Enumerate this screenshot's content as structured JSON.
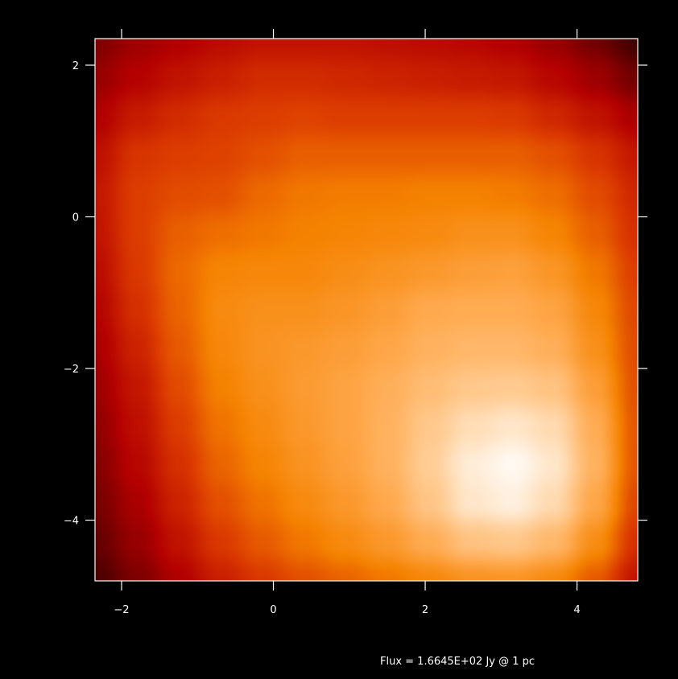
{
  "chart_data": {
    "type": "heatmap",
    "title": "",
    "xlabel": "",
    "ylabel": "",
    "xlim": [
      -2.35,
      4.8
    ],
    "ylim": [
      -4.8,
      2.35
    ],
    "x_ticks": [
      -2,
      0,
      2,
      4
    ],
    "y_ticks": [
      2,
      0,
      -2,
      -4
    ],
    "x_tick_labels": [
      "−2",
      "0",
      "2",
      "4"
    ],
    "y_tick_labels": [
      "2",
      "0",
      "−2",
      "−4"
    ],
    "grid": false,
    "colormap": "heat (black-red-orange-white)",
    "colors": {
      "background": "#000000",
      "axes": "#ffffff",
      "colormap_stops": [
        "#000000",
        "#5a0000",
        "#b40000",
        "#dc3c00",
        "#f58200",
        "#ffaa50",
        "#ffd2a0",
        "#ffffff"
      ]
    },
    "intensity_grid_note": "values on a normalized 0-1 scale; rows from top (y=2.35) to bottom (y=-4.8), columns from left (x=-2.35) to right (x=4.8)",
    "intensity_grid": [
      [
        0.2,
        0.25,
        0.28,
        0.31,
        0.33,
        0.33,
        0.33,
        0.32,
        0.31,
        0.3,
        0.28,
        0.24,
        0.18,
        0.1
      ],
      [
        0.24,
        0.29,
        0.33,
        0.36,
        0.39,
        0.39,
        0.38,
        0.37,
        0.36,
        0.35,
        0.34,
        0.3,
        0.25,
        0.18
      ],
      [
        0.28,
        0.35,
        0.39,
        0.42,
        0.43,
        0.44,
        0.43,
        0.43,
        0.43,
        0.43,
        0.42,
        0.38,
        0.33,
        0.27
      ],
      [
        0.32,
        0.41,
        0.43,
        0.44,
        0.47,
        0.5,
        0.5,
        0.5,
        0.5,
        0.5,
        0.5,
        0.47,
        0.41,
        0.34
      ],
      [
        0.34,
        0.43,
        0.46,
        0.47,
        0.52,
        0.55,
        0.56,
        0.56,
        0.57,
        0.57,
        0.56,
        0.53,
        0.46,
        0.38
      ],
      [
        0.33,
        0.43,
        0.5,
        0.53,
        0.55,
        0.57,
        0.58,
        0.59,
        0.6,
        0.62,
        0.62,
        0.58,
        0.5,
        0.4
      ],
      [
        0.31,
        0.42,
        0.52,
        0.58,
        0.59,
        0.59,
        0.61,
        0.63,
        0.65,
        0.67,
        0.68,
        0.64,
        0.55,
        0.43
      ],
      [
        0.29,
        0.4,
        0.51,
        0.6,
        0.62,
        0.62,
        0.64,
        0.67,
        0.71,
        0.72,
        0.72,
        0.69,
        0.59,
        0.45
      ],
      [
        0.27,
        0.37,
        0.49,
        0.59,
        0.63,
        0.65,
        0.67,
        0.7,
        0.74,
        0.76,
        0.76,
        0.73,
        0.62,
        0.46
      ],
      [
        0.25,
        0.34,
        0.46,
        0.57,
        0.62,
        0.66,
        0.69,
        0.73,
        0.78,
        0.82,
        0.83,
        0.8,
        0.67,
        0.47
      ],
      [
        0.23,
        0.32,
        0.43,
        0.54,
        0.6,
        0.65,
        0.69,
        0.74,
        0.82,
        0.89,
        0.92,
        0.88,
        0.72,
        0.48
      ],
      [
        0.21,
        0.3,
        0.4,
        0.51,
        0.58,
        0.63,
        0.68,
        0.74,
        0.84,
        0.94,
        0.98,
        0.92,
        0.74,
        0.48
      ],
      [
        0.19,
        0.27,
        0.37,
        0.47,
        0.54,
        0.6,
        0.65,
        0.71,
        0.81,
        0.92,
        0.95,
        0.88,
        0.7,
        0.45
      ],
      [
        0.16,
        0.24,
        0.33,
        0.42,
        0.49,
        0.55,
        0.6,
        0.65,
        0.72,
        0.8,
        0.82,
        0.76,
        0.61,
        0.4
      ],
      [
        0.12,
        0.2,
        0.28,
        0.36,
        0.42,
        0.47,
        0.51,
        0.55,
        0.59,
        0.63,
        0.64,
        0.6,
        0.49,
        0.33
      ]
    ]
  },
  "annotation": {
    "flux_text": "Flux = 1.6645E+02 Jy @ 1 pc"
  }
}
